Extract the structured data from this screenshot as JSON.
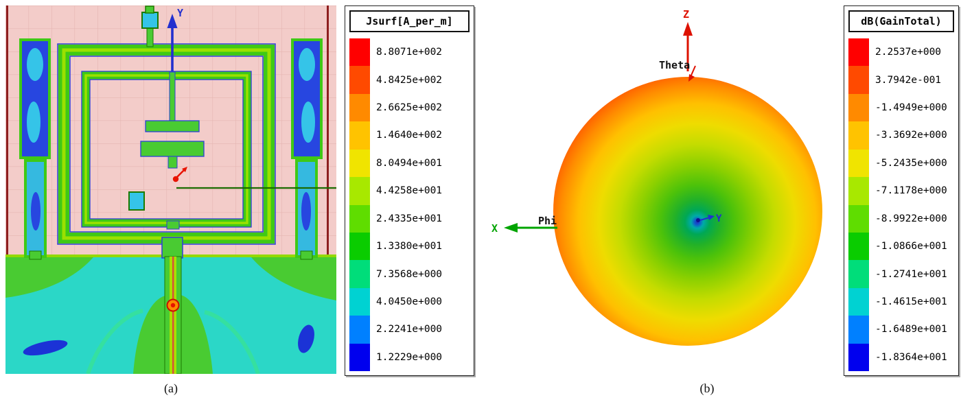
{
  "figure": {
    "captions": {
      "a": "(a)",
      "b": "(b)"
    }
  },
  "jsurf_plot": {
    "legend_title": "Jsurf[A_per_m]",
    "axis_y": "Y",
    "legend": [
      {
        "color": "#FF0000",
        "value": "8.8071e+002"
      },
      {
        "color": "#FF4A00",
        "value": "4.8425e+002"
      },
      {
        "color": "#FF8A00",
        "value": "2.6625e+002"
      },
      {
        "color": "#FFC300",
        "value": "1.4640e+002"
      },
      {
        "color": "#F0E400",
        "value": "8.0494e+001"
      },
      {
        "color": "#A8E800",
        "value": "4.4258e+001"
      },
      {
        "color": "#5FDD00",
        "value": "2.4335e+001"
      },
      {
        "color": "#0ACC00",
        "value": "1.3380e+001"
      },
      {
        "color": "#00DD7A",
        "value": "7.3568e+000"
      },
      {
        "color": "#00D2D2",
        "value": "4.0450e+000"
      },
      {
        "color": "#0080FF",
        "value": "2.2241e+000"
      },
      {
        "color": "#0000EE",
        "value": "1.2229e+000"
      }
    ]
  },
  "gain_plot": {
    "legend_title": "dB(GainTotal)",
    "axes": {
      "z": "Z",
      "x": "X",
      "y": "Y",
      "theta": "Theta",
      "phi": "Phi"
    },
    "legend": [
      {
        "color": "#FF0000",
        "value": "2.2537e+000"
      },
      {
        "color": "#FF4A00",
        "value": "3.7942e-001"
      },
      {
        "color": "#FF8A00",
        "value": "-1.4949e+000"
      },
      {
        "color": "#FFC300",
        "value": "-3.3692e+000"
      },
      {
        "color": "#F0E400",
        "value": "-5.2435e+000"
      },
      {
        "color": "#A8E800",
        "value": "-7.1178e+000"
      },
      {
        "color": "#5FDD00",
        "value": "-8.9922e+000"
      },
      {
        "color": "#0ACC00",
        "value": "-1.0866e+001"
      },
      {
        "color": "#00DD7A",
        "value": "-1.2741e+001"
      },
      {
        "color": "#00D2D2",
        "value": "-1.4615e+001"
      },
      {
        "color": "#0080FF",
        "value": "-1.6489e+001"
      },
      {
        "color": "#0000EE",
        "value": "-1.8364e+001"
      }
    ]
  }
}
